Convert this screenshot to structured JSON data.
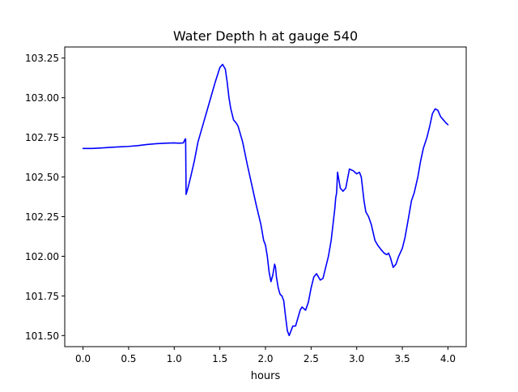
{
  "chart_data": {
    "type": "line",
    "title": "Water Depth h at gauge 540",
    "xlabel": "hours",
    "ylabel": "",
    "xlim": [
      -0.2,
      4.2
    ],
    "ylim": [
      101.43,
      103.32
    ],
    "xticks": [
      0.0,
      0.5,
      1.0,
      1.5,
      2.0,
      2.5,
      3.0,
      3.5,
      4.0
    ],
    "xtick_labels": [
      "0.0",
      "0.5",
      "1.0",
      "1.5",
      "2.0",
      "2.5",
      "3.0",
      "3.5",
      "4.0"
    ],
    "yticks": [
      101.5,
      101.75,
      102.0,
      102.25,
      102.5,
      102.75,
      103.0,
      103.25
    ],
    "ytick_labels": [
      "101.50",
      "101.75",
      "102.00",
      "102.25",
      "102.50",
      "102.75",
      "103.00",
      "103.25"
    ],
    "grid": false,
    "legend": "none",
    "series": [
      {
        "color": "#0000ff",
        "x": [
          0.0,
          0.1,
          0.2,
          0.3,
          0.4,
          0.5,
          0.6,
          0.7,
          0.8,
          0.9,
          1.0,
          1.05,
          1.1,
          1.12,
          1.125,
          1.13,
          1.15,
          1.18,
          1.22,
          1.26,
          1.3,
          1.35,
          1.4,
          1.45,
          1.5,
          1.53,
          1.56,
          1.58,
          1.6,
          1.62,
          1.65,
          1.68,
          1.7,
          1.72,
          1.75,
          1.8,
          1.85,
          1.9,
          1.95,
          1.98,
          2.0,
          2.02,
          2.04,
          2.06,
          2.08,
          2.1,
          2.11,
          2.12,
          2.14,
          2.16,
          2.18,
          2.2,
          2.22,
          2.24,
          2.26,
          2.28,
          2.3,
          2.33,
          2.35,
          2.38,
          2.4,
          2.42,
          2.44,
          2.47,
          2.5,
          2.53,
          2.56,
          2.6,
          2.63,
          2.66,
          2.69,
          2.72,
          2.74,
          2.76,
          2.77,
          2.78,
          2.79,
          2.82,
          2.85,
          2.88,
          2.92,
          2.96,
          3.0,
          3.03,
          3.05,
          3.08,
          3.1,
          3.13,
          3.16,
          3.2,
          3.23,
          3.27,
          3.3,
          3.33,
          3.35,
          3.37,
          3.4,
          3.43,
          3.46,
          3.5,
          3.53,
          3.57,
          3.6,
          3.63,
          3.67,
          3.7,
          3.73,
          3.77,
          3.8,
          3.83,
          3.86,
          3.89,
          3.92,
          3.95,
          3.98,
          4.0
        ],
        "y": [
          102.68,
          102.68,
          102.683,
          102.687,
          102.69,
          102.693,
          102.698,
          102.705,
          102.71,
          102.713,
          102.715,
          102.713,
          102.715,
          102.74,
          102.74,
          102.39,
          102.43,
          102.5,
          102.6,
          102.72,
          102.8,
          102.9,
          103.0,
          103.1,
          103.19,
          103.21,
          103.18,
          103.1,
          103.0,
          102.93,
          102.86,
          102.84,
          102.82,
          102.78,
          102.72,
          102.58,
          102.45,
          102.32,
          102.2,
          102.1,
          102.07,
          102.0,
          101.9,
          101.84,
          101.88,
          101.95,
          101.93,
          101.87,
          101.8,
          101.76,
          101.75,
          101.72,
          101.62,
          101.53,
          101.5,
          101.53,
          101.56,
          101.56,
          101.6,
          101.66,
          101.68,
          101.67,
          101.66,
          101.71,
          101.8,
          101.87,
          101.89,
          101.85,
          101.86,
          101.93,
          102.0,
          102.1,
          102.2,
          102.3,
          102.37,
          102.4,
          102.53,
          102.43,
          102.41,
          102.43,
          102.55,
          102.54,
          102.52,
          102.53,
          102.5,
          102.35,
          102.28,
          102.25,
          102.2,
          102.1,
          102.07,
          102.04,
          102.02,
          102.01,
          102.02,
          101.99,
          101.93,
          101.95,
          102.0,
          102.05,
          102.12,
          102.25,
          102.35,
          102.4,
          102.5,
          102.6,
          102.68,
          102.75,
          102.82,
          102.9,
          102.93,
          102.92,
          102.88,
          102.86,
          102.84,
          102.83
        ]
      }
    ]
  }
}
